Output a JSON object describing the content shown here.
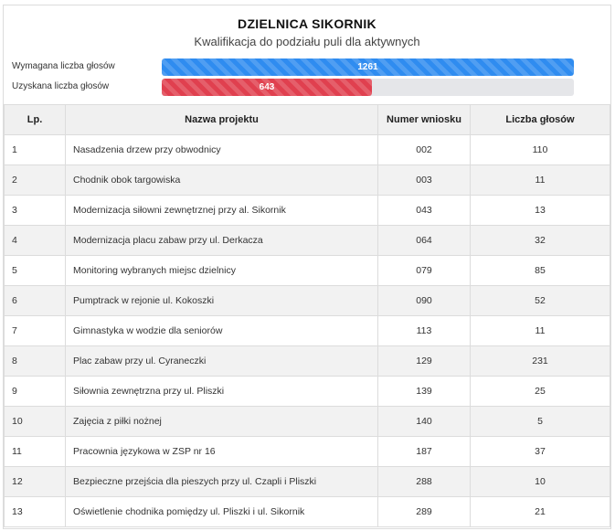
{
  "header": {
    "title": "DZIELNICA SIKORNIK",
    "subtitle": "Kwalifikacja do podziału puli dla aktywnych"
  },
  "progress": {
    "required": {
      "label": "Wymagana liczba głosów",
      "value": "1261",
      "fraction": 1.0,
      "color": "#2f8cf0"
    },
    "received": {
      "label": "Uzyskana liczba głosów",
      "value": "643",
      "fraction": 0.51,
      "color": "#e0404f"
    }
  },
  "table": {
    "headers": [
      "Lp.",
      "Nazwa projektu",
      "Numer wniosku",
      "Liczba głosów"
    ],
    "rows": [
      [
        "1",
        "Nasadzenia drzew przy obwodnicy",
        "002",
        "110"
      ],
      [
        "2",
        "Chodnik obok targowiska",
        "003",
        "11"
      ],
      [
        "3",
        "Modernizacja siłowni zewnętrznej przy al. Sikornik",
        "043",
        "13"
      ],
      [
        "4",
        "Modernizacja placu zabaw przy ul. Derkacza",
        "064",
        "32"
      ],
      [
        "5",
        "Monitoring wybranych miejsc dzielnicy",
        "079",
        "85"
      ],
      [
        "6",
        "Pumptrack w rejonie ul. Kokoszki",
        "090",
        "52"
      ],
      [
        "7",
        "Gimnastyka w wodzie dla seniorów",
        "113",
        "11"
      ],
      [
        "8",
        "Plac zabaw przy ul. Cyraneczki",
        "129",
        "231"
      ],
      [
        "9",
        "Siłownia zewnętrzna przy ul. Pliszki",
        "139",
        "25"
      ],
      [
        "10",
        "Zajęcia z piłki nożnej",
        "140",
        "5"
      ],
      [
        "11",
        "Pracownia językowa w ZSP nr 16",
        "187",
        "37"
      ],
      [
        "12",
        "Bezpieczne przejścia dla pieszych przy ul. Czapli i Pliszki",
        "288",
        "10"
      ],
      [
        "13",
        "Oświetlenie chodnika pomiędzy ul. Pliszki i ul. Sikornik",
        "289",
        "21"
      ]
    ]
  }
}
